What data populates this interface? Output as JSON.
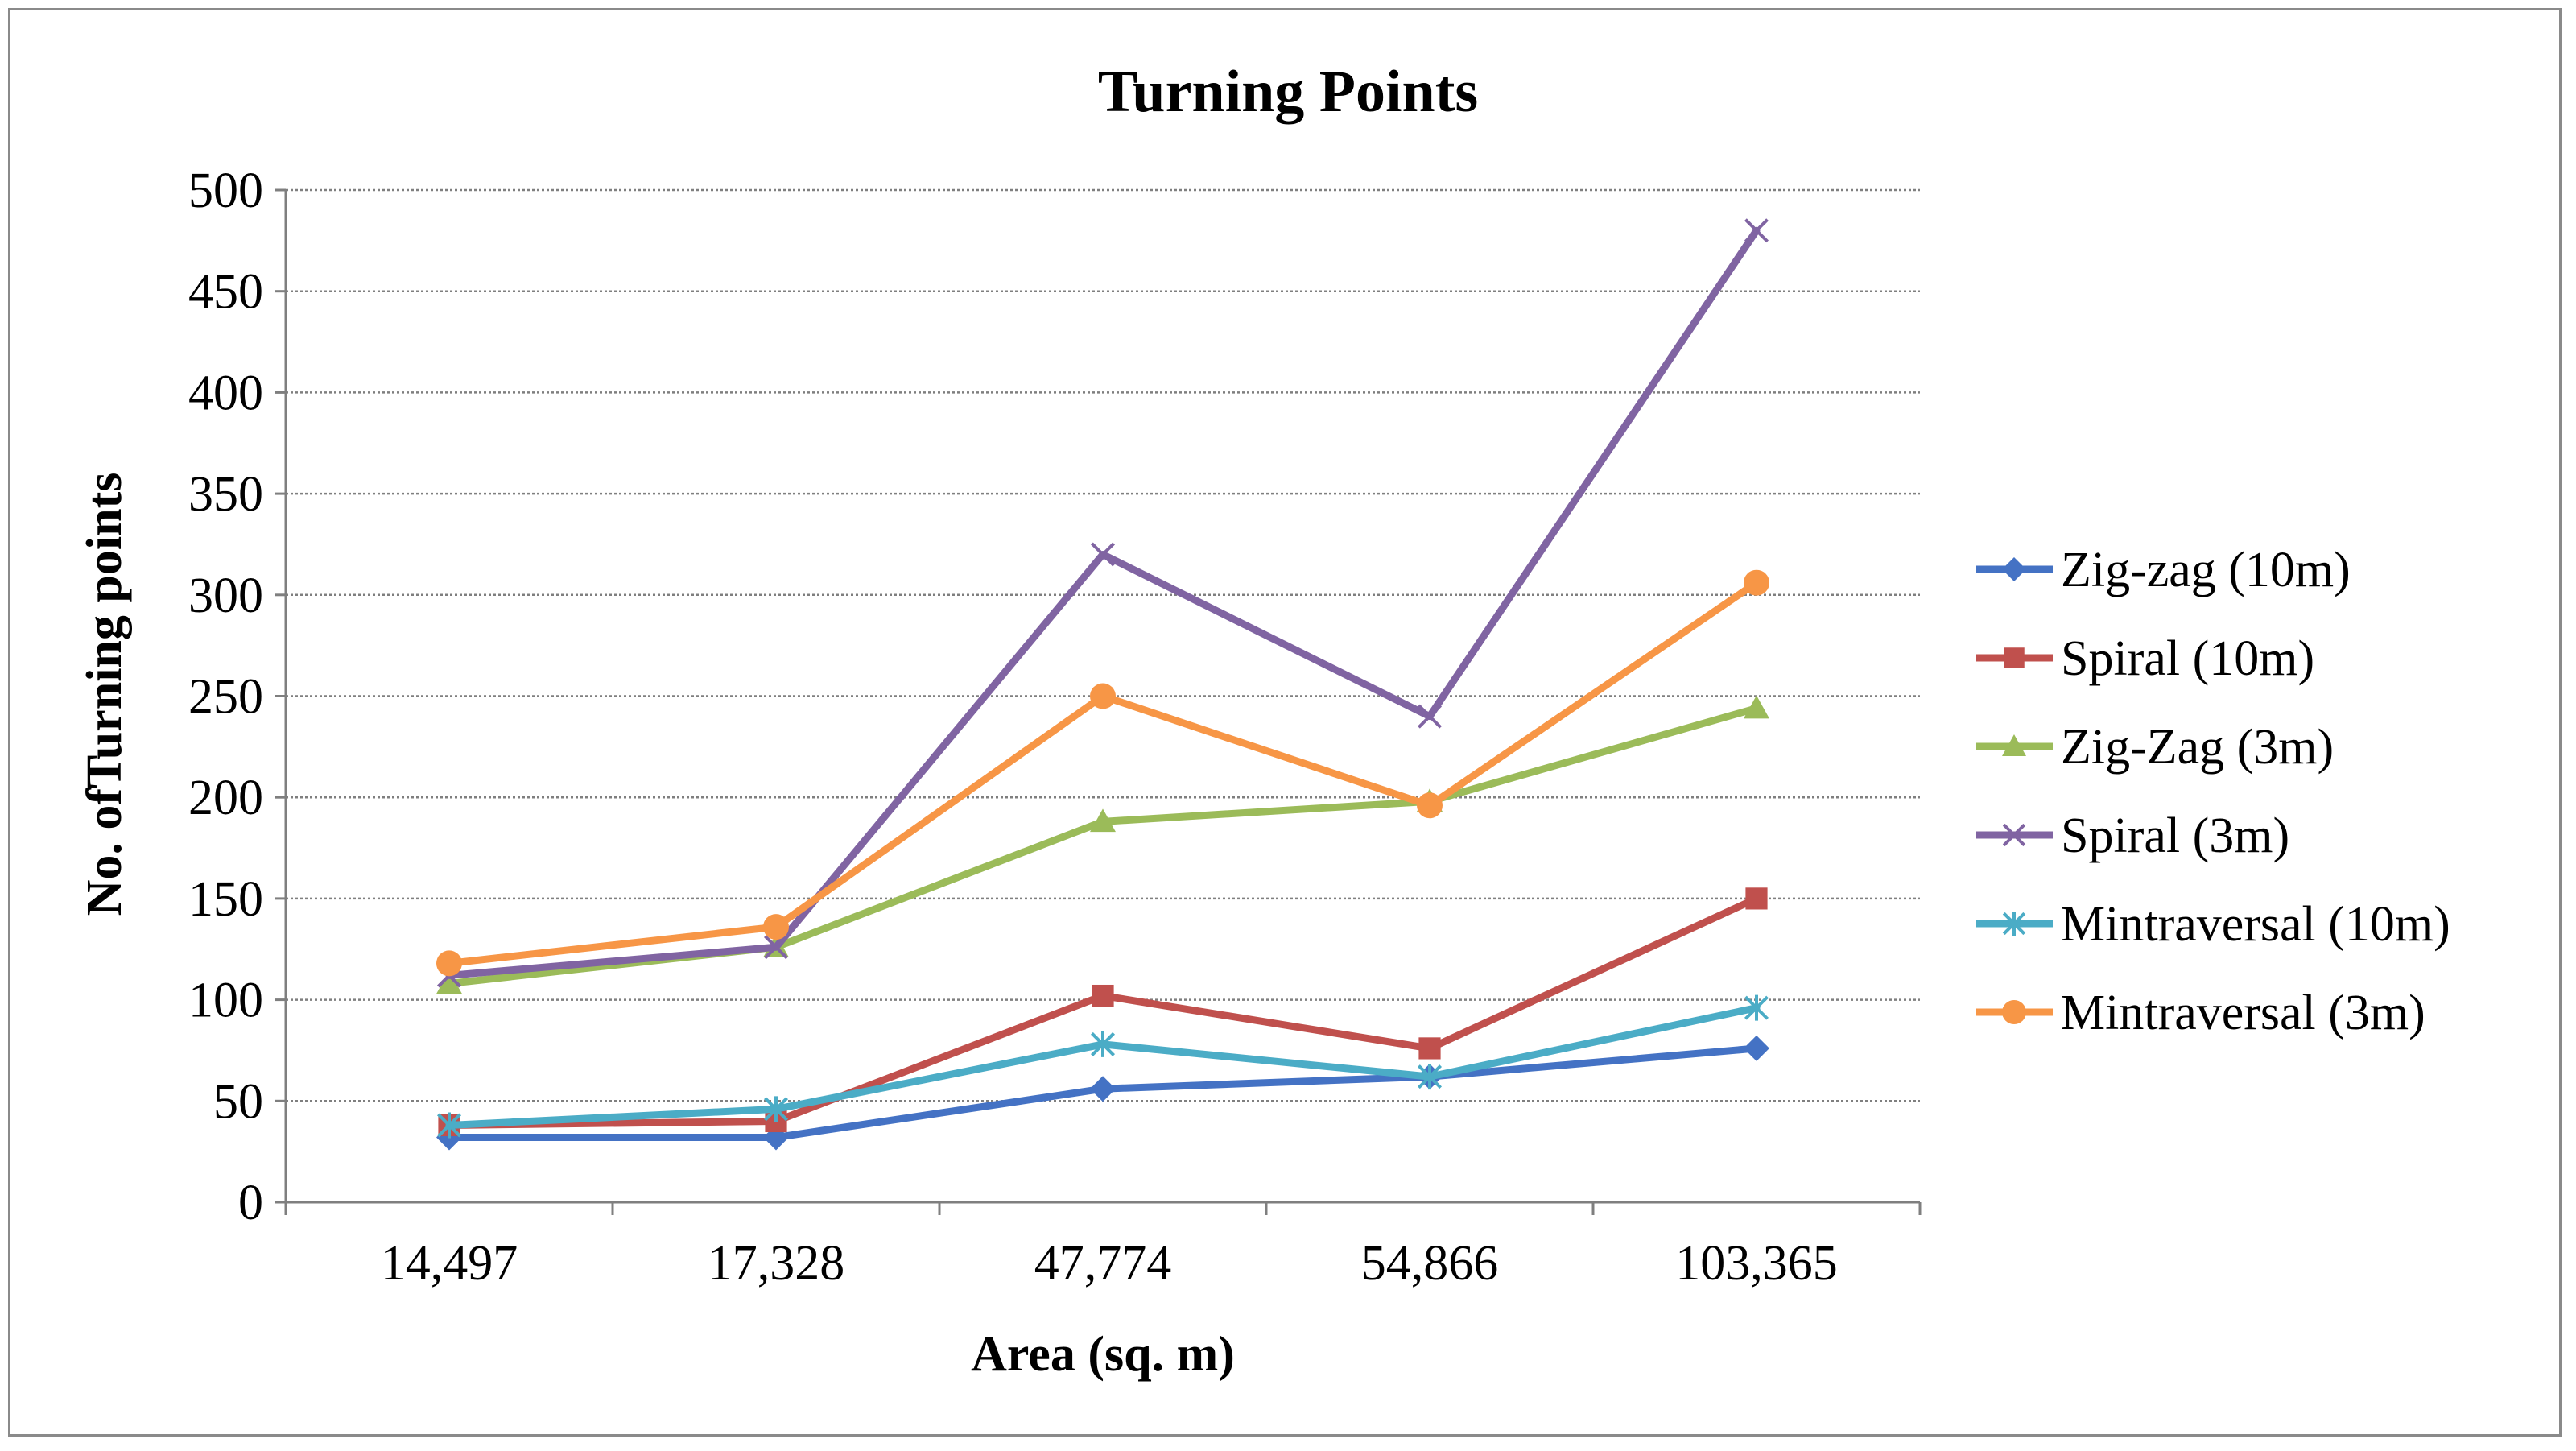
{
  "chart_data": {
    "type": "line",
    "title": "Turning Points",
    "xlabel": "Area (sq. m)",
    "ylabel": "No. ofTurning points",
    "categories": [
      "14,497",
      "17,328",
      "47,774",
      "54,866",
      "103,365"
    ],
    "ylim": [
      0,
      500
    ],
    "yticks": [
      0,
      50,
      100,
      150,
      200,
      250,
      300,
      350,
      400,
      450,
      500
    ],
    "grid": true,
    "legend_position": "right",
    "series": [
      {
        "name": "Zig-zag (10m)",
        "color": "#4472C4",
        "marker": "diamond",
        "values": [
          32,
          32,
          56,
          62,
          76
        ]
      },
      {
        "name": "Spiral (10m)",
        "color": "#C0504D",
        "marker": "square",
        "values": [
          38,
          40,
          102,
          76,
          150
        ]
      },
      {
        "name": "Zig-Zag (3m)",
        "color": "#9BBB59",
        "marker": "triangle",
        "values": [
          108,
          126,
          188,
          198,
          244
        ]
      },
      {
        "name": "Spiral (3m)",
        "color": "#8064A2",
        "marker": "x",
        "values": [
          112,
          126,
          320,
          240,
          480
        ]
      },
      {
        "name": "Mintraversal (10m)",
        "color": "#4BACC6",
        "marker": "star",
        "values": [
          38,
          46,
          78,
          62,
          96
        ]
      },
      {
        "name": "Mintraversal (3m)",
        "color": "#F79646",
        "marker": "circle",
        "values": [
          118,
          136,
          250,
          196,
          306
        ]
      }
    ]
  }
}
